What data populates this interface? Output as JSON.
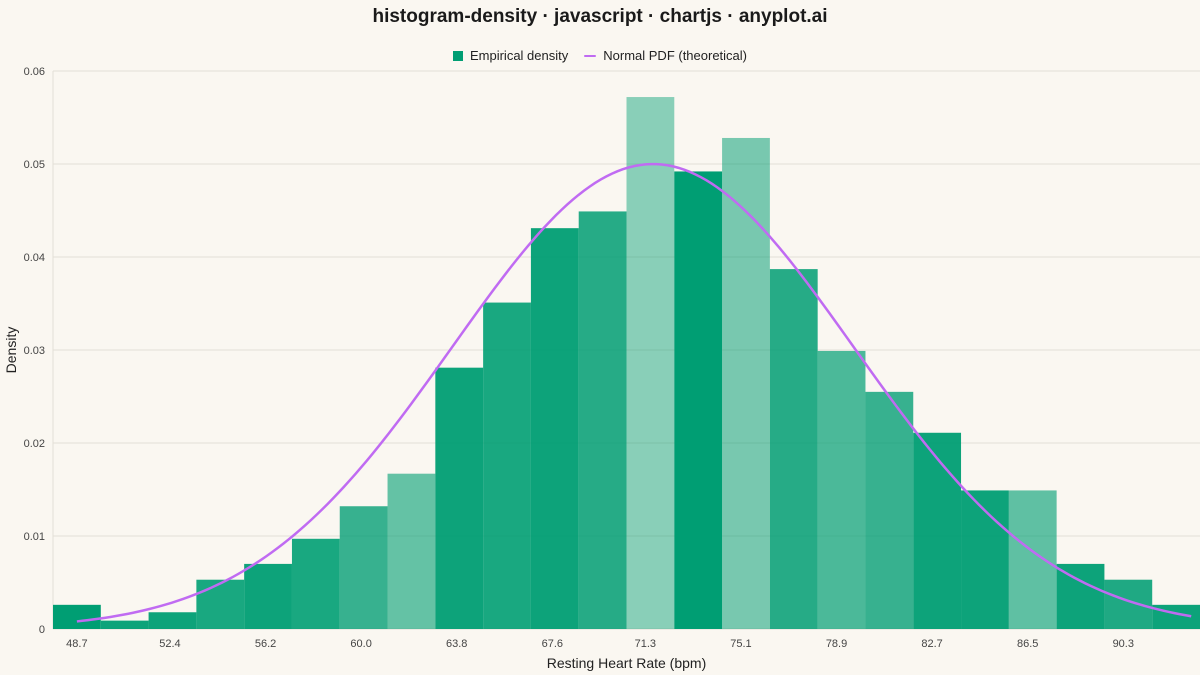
{
  "title": "histogram-density · javascript · chartjs · anyplot.ai",
  "colors": {
    "background": "#FAF7F1",
    "bar": "#009E73",
    "curve": "#C06BF2",
    "grid": "#E3DFD6",
    "axis_text": "#444444"
  },
  "legend": {
    "bar_label": "Empirical density",
    "curve_label": "Normal PDF (theoretical)",
    "placement": "top-center"
  },
  "chart_data": {
    "type": "bar",
    "xlabel": "Resting Heart Rate (bpm)",
    "ylabel": "Density",
    "ylim": [
      0,
      0.06
    ],
    "yticks": [
      "0",
      "0.01",
      "0.02",
      "0.03",
      "0.04",
      "0.05",
      "0.06"
    ],
    "ytick_values": [
      0,
      0.01,
      0.02,
      0.03,
      0.04,
      0.05,
      0.06
    ],
    "bin_start": 47.75,
    "bin_width": 1.9,
    "xtick_labels": [
      "48.7",
      "52.4",
      "56.2",
      "60.0",
      "63.8",
      "67.6",
      "71.3",
      "75.1",
      "78.9",
      "82.7",
      "86.5",
      "90.3"
    ],
    "xtick_values": [
      48.7,
      52.4,
      56.2,
      60.0,
      63.8,
      67.6,
      71.3,
      75.1,
      78.9,
      82.7,
      86.5,
      90.3
    ],
    "grid": true,
    "series": [
      {
        "name": "Empirical density",
        "kind": "bar",
        "values": [
          0.0026,
          0.0009,
          0.0018,
          0.0053,
          0.007,
          0.0097,
          0.0132,
          0.0167,
          0.0281,
          0.0351,
          0.0431,
          0.0449,
          0.0572,
          0.0492,
          0.0528,
          0.0387,
          0.0299,
          0.0255,
          0.0211,
          0.0149,
          0.0149,
          0.007,
          0.0053,
          0.0026
        ],
        "opacity": [
          1.0,
          0.95,
          0.95,
          0.9,
          0.95,
          0.9,
          0.78,
          0.6,
          0.95,
          0.9,
          0.95,
          0.85,
          0.45,
          1.0,
          0.52,
          0.85,
          0.7,
          0.78,
          0.95,
          0.95,
          0.62,
          0.95,
          0.88,
          0.95
        ]
      },
      {
        "name": "Normal PDF (theoretical)",
        "kind": "line",
        "mean": 71.6,
        "sd": 7.98,
        "x_range": [
          48.7,
          93.0
        ]
      }
    ]
  }
}
